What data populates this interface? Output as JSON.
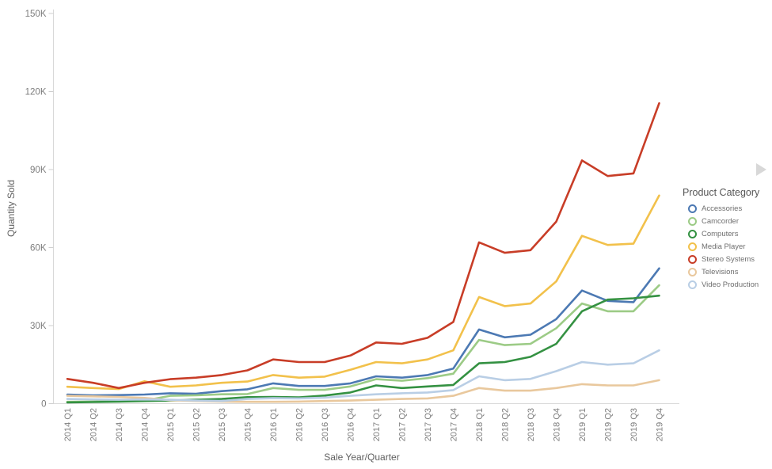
{
  "chart_data": {
    "type": "line",
    "title": "",
    "xlabel": "Sale Year/Quarter",
    "ylabel": "Quantity Sold",
    "ylim": [
      0,
      150000
    ],
    "grid": false,
    "legend_position": "right",
    "legend_title": "Product Category",
    "legend_pager_icon": "right-triangle",
    "yticks": [
      {
        "value": 0,
        "label": "0"
      },
      {
        "value": 30000,
        "label": "30K"
      },
      {
        "value": 60000,
        "label": "60K"
      },
      {
        "value": 90000,
        "label": "90K"
      },
      {
        "value": 120000,
        "label": "120K"
      },
      {
        "value": 150000,
        "label": "150K"
      }
    ],
    "categories": [
      "2014 Q1",
      "2014 Q2",
      "2014 Q3",
      "2014 Q4",
      "2015 Q1",
      "2015 Q2",
      "2015 Q3",
      "2015 Q4",
      "2016 Q1",
      "2016 Q2",
      "2016 Q3",
      "2016 Q4",
      "2017 Q1",
      "2017 Q2",
      "2017 Q3",
      "2017 Q4",
      "2018 Q1",
      "2018 Q2",
      "2018 Q3",
      "2018 Q4",
      "2019 Q1",
      "2019 Q2",
      "2019 Q3",
      "2019 Q4"
    ],
    "series": [
      {
        "name": "Accessories",
        "color": "#4c79b3",
        "values": [
          3500,
          3200,
          3300,
          3500,
          4000,
          3800,
          4800,
          5500,
          7800,
          6800,
          6800,
          7800,
          10500,
          10000,
          11000,
          13500,
          28500,
          25500,
          26500,
          32500,
          43500,
          39500,
          39000,
          52000
        ]
      },
      {
        "name": "Camcorder",
        "color": "#9ccb86",
        "values": [
          700,
          800,
          1000,
          1200,
          3000,
          3200,
          3600,
          3700,
          6000,
          5300,
          5300,
          6600,
          9400,
          8800,
          9800,
          11500,
          24500,
          22500,
          23000,
          29000,
          38500,
          35500,
          35500,
          45500
        ]
      },
      {
        "name": "Computers",
        "color": "#349142",
        "values": [
          500,
          600,
          800,
          1000,
          1200,
          1500,
          1800,
          2500,
          2600,
          2400,
          3100,
          4300,
          7000,
          6000,
          6600,
          7200,
          15500,
          16000,
          18000,
          23000,
          35500,
          40000,
          40500,
          41500
        ]
      },
      {
        "name": "Media Player",
        "color": "#f2c14b",
        "values": [
          6500,
          6000,
          5600,
          8600,
          6500,
          7000,
          8000,
          8500,
          11000,
          10000,
          10400,
          13000,
          16000,
          15500,
          17000,
          20500,
          41000,
          37500,
          38500,
          47000,
          64500,
          61000,
          61500,
          80000
        ]
      },
      {
        "name": "Stereo Systems",
        "color": "#c83d27",
        "values": [
          9500,
          8000,
          6000,
          8000,
          9400,
          10000,
          11000,
          12800,
          17000,
          16000,
          16000,
          18500,
          23500,
          23000,
          25300,
          31400,
          62000,
          58000,
          59000,
          70000,
          93500,
          87500,
          88500,
          115500
        ]
      },
      {
        "name": "Televisions",
        "color": "#e9c89d",
        "values": [
          3000,
          2800,
          2600,
          2200,
          1300,
          1000,
          800,
          700,
          700,
          800,
          1000,
          1200,
          1500,
          1800,
          2000,
          3000,
          6000,
          5000,
          5000,
          6000,
          7500,
          7000,
          7000,
          9000
        ]
      },
      {
        "name": "Video Production",
        "color": "#b9cee5",
        "values": [
          1800,
          1600,
          1500,
          1600,
          1500,
          1200,
          1000,
          1800,
          2100,
          2000,
          2300,
          3000,
          3600,
          4000,
          4300,
          5200,
          10500,
          9000,
          9500,
          12500,
          16000,
          15000,
          15500,
          20500
        ]
      }
    ]
  },
  "style": {
    "axis_line_color": "#d9d9d9",
    "tick_color": "#cfcfcf",
    "tick_label_color": "#7d7d7d",
    "axis_title_color": "#5f5f5f",
    "pager_color": "#d8d8d8"
  }
}
